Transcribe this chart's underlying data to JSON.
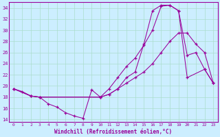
{
  "xlabel": "Windchill (Refroidissement éolien,°C)",
  "bg_color": "#cceeff",
  "line_color": "#990099",
  "grid_color": "#aaddcc",
  "xlim": [
    -0.5,
    23.5
  ],
  "ylim": [
    13.5,
    35.0
  ],
  "yticks": [
    14,
    16,
    18,
    20,
    22,
    24,
    26,
    28,
    30,
    32,
    34
  ],
  "xticks": [
    0,
    1,
    2,
    3,
    4,
    5,
    6,
    7,
    8,
    9,
    10,
    11,
    12,
    13,
    14,
    15,
    16,
    17,
    18,
    19,
    20,
    21,
    22,
    23
  ],
  "line1_x": [
    0,
    1,
    2,
    3,
    4,
    5,
    6,
    7,
    8,
    9,
    10,
    11,
    12,
    13,
    14,
    15,
    16,
    17,
    18,
    19,
    20,
    21,
    22,
    23
  ],
  "line1_y": [
    19.5,
    19.0,
    18.2,
    18.0,
    16.8,
    16.2,
    15.2,
    14.6,
    14.2,
    19.3,
    18.0,
    18.5,
    19.5,
    21.5,
    22.5,
    27.5,
    33.5,
    34.5,
    34.5,
    33.5,
    25.5,
    26.0,
    23.0,
    20.5
  ],
  "line2_x": [
    0,
    2,
    3,
    10,
    11,
    12,
    13,
    14,
    15,
    16,
    17,
    18,
    19,
    20,
    22,
    23
  ],
  "line2_y": [
    19.5,
    18.2,
    18.0,
    18.0,
    19.5,
    21.5,
    23.5,
    25.0,
    27.3,
    30.0,
    34.3,
    34.5,
    33.5,
    21.5,
    23.0,
    20.5
  ],
  "line3_x": [
    0,
    2,
    3,
    10,
    11,
    12,
    13,
    14,
    15,
    16,
    17,
    18,
    19,
    20,
    21,
    22,
    23
  ],
  "line3_y": [
    19.5,
    18.2,
    18.0,
    18.0,
    18.5,
    19.5,
    20.5,
    21.5,
    22.5,
    24.0,
    26.0,
    28.0,
    29.5,
    29.5,
    27.5,
    26.0,
    20.5
  ]
}
